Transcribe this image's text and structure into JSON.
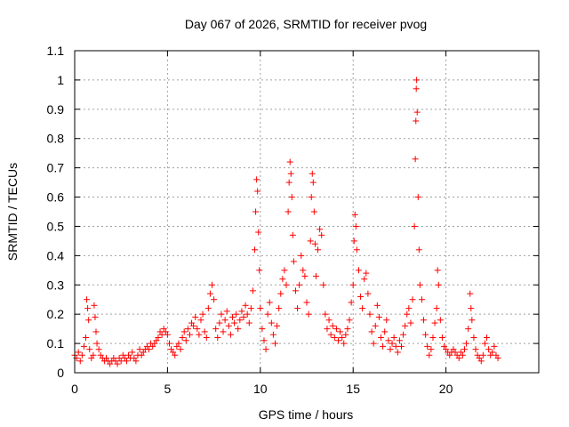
{
  "chart_data": {
    "type": "scatter",
    "title": "Day 067 of 2026, SRMTID for receiver pvog",
    "xlabel": "GPS time / hours",
    "ylabel": "SRMTID / TECUs",
    "xlim": [
      0,
      25
    ],
    "ylim": [
      0,
      1.1
    ],
    "x_ticks": [
      0,
      5,
      10,
      15,
      20
    ],
    "x_tick_labels": [
      "0",
      "5",
      "10",
      "15",
      "20"
    ],
    "y_ticks": [
      0,
      0.1,
      0.2,
      0.3,
      0.4,
      0.5,
      0.6,
      0.7,
      0.8,
      0.9,
      1,
      1.1
    ],
    "y_tick_labels": [
      "0",
      "0.1",
      "0.2",
      "0.3",
      "0.4",
      "0.5",
      "0.6",
      "0.7",
      "0.8",
      "0.9",
      "1",
      "1.1"
    ],
    "grid": true,
    "marker": "+",
    "marker_color": "#ff0000",
    "series": [
      {
        "name": "SRMTID",
        "points": [
          [
            0.0,
            0.06
          ],
          [
            0.1,
            0.05
          ],
          [
            0.2,
            0.07
          ],
          [
            0.3,
            0.04
          ],
          [
            0.4,
            0.06
          ],
          [
            0.5,
            0.09
          ],
          [
            0.6,
            0.12
          ],
          [
            0.65,
            0.25
          ],
          [
            0.7,
            0.22
          ],
          [
            0.75,
            0.18
          ],
          [
            0.8,
            0.08
          ],
          [
            0.9,
            0.05
          ],
          [
            1.0,
            0.06
          ],
          [
            1.05,
            0.23
          ],
          [
            1.1,
            0.19
          ],
          [
            1.15,
            0.14
          ],
          [
            1.2,
            0.1
          ],
          [
            1.3,
            0.08
          ],
          [
            1.4,
            0.06
          ],
          [
            1.5,
            0.05
          ],
          [
            1.6,
            0.04
          ],
          [
            1.7,
            0.05
          ],
          [
            1.8,
            0.04
          ],
          [
            1.9,
            0.03
          ],
          [
            2.0,
            0.04
          ],
          [
            2.1,
            0.05
          ],
          [
            2.2,
            0.04
          ],
          [
            2.3,
            0.03
          ],
          [
            2.4,
            0.05
          ],
          [
            2.5,
            0.04
          ],
          [
            2.6,
            0.06
          ],
          [
            2.7,
            0.05
          ],
          [
            2.8,
            0.04
          ],
          [
            2.9,
            0.06
          ],
          [
            3.0,
            0.05
          ],
          [
            3.1,
            0.07
          ],
          [
            3.2,
            0.05
          ],
          [
            3.3,
            0.04
          ],
          [
            3.4,
            0.06
          ],
          [
            3.5,
            0.08
          ],
          [
            3.6,
            0.06
          ],
          [
            3.7,
            0.07
          ],
          [
            3.8,
            0.08
          ],
          [
            3.9,
            0.09
          ],
          [
            4.0,
            0.08
          ],
          [
            4.1,
            0.1
          ],
          [
            4.2,
            0.09
          ],
          [
            4.3,
            0.1
          ],
          [
            4.4,
            0.11
          ],
          [
            4.5,
            0.12
          ],
          [
            4.6,
            0.14
          ],
          [
            4.7,
            0.13
          ],
          [
            4.8,
            0.15
          ],
          [
            4.9,
            0.14
          ],
          [
            5.0,
            0.13
          ],
          [
            5.1,
            0.1
          ],
          [
            5.2,
            0.08
          ],
          [
            5.3,
            0.07
          ],
          [
            5.4,
            0.06
          ],
          [
            5.5,
            0.09
          ],
          [
            5.6,
            0.1
          ],
          [
            5.7,
            0.08
          ],
          [
            5.8,
            0.12
          ],
          [
            5.9,
            0.14
          ],
          [
            6.0,
            0.11
          ],
          [
            6.1,
            0.15
          ],
          [
            6.2,
            0.13
          ],
          [
            6.3,
            0.17
          ],
          [
            6.4,
            0.16
          ],
          [
            6.5,
            0.19
          ],
          [
            6.6,
            0.15
          ],
          [
            6.7,
            0.13
          ],
          [
            6.8,
            0.18
          ],
          [
            6.9,
            0.2
          ],
          [
            7.0,
            0.14
          ],
          [
            7.1,
            0.12
          ],
          [
            7.2,
            0.22
          ],
          [
            7.3,
            0.27
          ],
          [
            7.4,
            0.3
          ],
          [
            7.5,
            0.25
          ],
          [
            7.6,
            0.15
          ],
          [
            7.7,
            0.12
          ],
          [
            7.8,
            0.17
          ],
          [
            7.9,
            0.2
          ],
          [
            8.0,
            0.14
          ],
          [
            8.1,
            0.18
          ],
          [
            8.2,
            0.21
          ],
          [
            8.3,
            0.16
          ],
          [
            8.4,
            0.13
          ],
          [
            8.5,
            0.19
          ],
          [
            8.6,
            0.17
          ],
          [
            8.7,
            0.2
          ],
          [
            8.8,
            0.15
          ],
          [
            8.9,
            0.18
          ],
          [
            9.0,
            0.21
          ],
          [
            9.1,
            0.19
          ],
          [
            9.2,
            0.23
          ],
          [
            9.3,
            0.2
          ],
          [
            9.4,
            0.17
          ],
          [
            9.5,
            0.22
          ],
          [
            9.6,
            0.28
          ],
          [
            9.7,
            0.42
          ],
          [
            9.75,
            0.55
          ],
          [
            9.8,
            0.66
          ],
          [
            9.85,
            0.62
          ],
          [
            9.9,
            0.48
          ],
          [
            9.95,
            0.35
          ],
          [
            10.0,
            0.22
          ],
          [
            10.1,
            0.15
          ],
          [
            10.2,
            0.11
          ],
          [
            10.3,
            0.08
          ],
          [
            10.4,
            0.2
          ],
          [
            10.5,
            0.24
          ],
          [
            10.6,
            0.17
          ],
          [
            10.7,
            0.13
          ],
          [
            10.8,
            0.1
          ],
          [
            10.9,
            0.16
          ],
          [
            11.0,
            0.22
          ],
          [
            11.1,
            0.27
          ],
          [
            11.2,
            0.32
          ],
          [
            11.3,
            0.35
          ],
          [
            11.4,
            0.3
          ],
          [
            11.5,
            0.55
          ],
          [
            11.55,
            0.65
          ],
          [
            11.6,
            0.72
          ],
          [
            11.65,
            0.68
          ],
          [
            11.7,
            0.6
          ],
          [
            11.75,
            0.47
          ],
          [
            11.8,
            0.38
          ],
          [
            11.9,
            0.28
          ],
          [
            12.0,
            0.22
          ],
          [
            12.1,
            0.3
          ],
          [
            12.2,
            0.4
          ],
          [
            12.3,
            0.35
          ],
          [
            12.4,
            0.33
          ],
          [
            12.5,
            0.24
          ],
          [
            12.6,
            0.2
          ],
          [
            12.7,
            0.45
          ],
          [
            12.75,
            0.6
          ],
          [
            12.8,
            0.68
          ],
          [
            12.85,
            0.65
          ],
          [
            12.9,
            0.55
          ],
          [
            12.95,
            0.44
          ],
          [
            13.0,
            0.33
          ],
          [
            13.1,
            0.42
          ],
          [
            13.2,
            0.49
          ],
          [
            13.3,
            0.47
          ],
          [
            13.4,
            0.3
          ],
          [
            13.5,
            0.2
          ],
          [
            13.6,
            0.15
          ],
          [
            13.7,
            0.18
          ],
          [
            13.8,
            0.13
          ],
          [
            13.9,
            0.16
          ],
          [
            14.0,
            0.12
          ],
          [
            14.1,
            0.15
          ],
          [
            14.2,
            0.11
          ],
          [
            14.3,
            0.14
          ],
          [
            14.4,
            0.12
          ],
          [
            14.5,
            0.1
          ],
          [
            14.6,
            0.13
          ],
          [
            14.7,
            0.15
          ],
          [
            14.8,
            0.18
          ],
          [
            14.9,
            0.24
          ],
          [
            15.0,
            0.3
          ],
          [
            15.05,
            0.45
          ],
          [
            15.1,
            0.54
          ],
          [
            15.15,
            0.5
          ],
          [
            15.2,
            0.42
          ],
          [
            15.3,
            0.35
          ],
          [
            15.4,
            0.26
          ],
          [
            15.5,
            0.22
          ],
          [
            15.6,
            0.32
          ],
          [
            15.7,
            0.34
          ],
          [
            15.8,
            0.27
          ],
          [
            15.9,
            0.2
          ],
          [
            16.0,
            0.14
          ],
          [
            16.1,
            0.1
          ],
          [
            16.2,
            0.16
          ],
          [
            16.3,
            0.23
          ],
          [
            16.4,
            0.19
          ],
          [
            16.5,
            0.12
          ],
          [
            16.6,
            0.09
          ],
          [
            16.7,
            0.14
          ],
          [
            16.8,
            0.18
          ],
          [
            16.9,
            0.11
          ],
          [
            17.0,
            0.08
          ],
          [
            17.1,
            0.1
          ],
          [
            17.2,
            0.12
          ],
          [
            17.3,
            0.09
          ],
          [
            17.4,
            0.07
          ],
          [
            17.5,
            0.11
          ],
          [
            17.6,
            0.09
          ],
          [
            17.7,
            0.13
          ],
          [
            17.8,
            0.16
          ],
          [
            17.9,
            0.2
          ],
          [
            18.0,
            0.22
          ],
          [
            18.1,
            0.17
          ],
          [
            18.2,
            0.25
          ],
          [
            18.3,
            0.5
          ],
          [
            18.35,
            0.73
          ],
          [
            18.38,
            0.86
          ],
          [
            18.4,
            0.97
          ],
          [
            18.42,
            1.0
          ],
          [
            18.45,
            0.89
          ],
          [
            18.5,
            0.6
          ],
          [
            18.55,
            0.42
          ],
          [
            18.6,
            0.3
          ],
          [
            18.7,
            0.25
          ],
          [
            18.8,
            0.18
          ],
          [
            18.9,
            0.13
          ],
          [
            19.0,
            0.09
          ],
          [
            19.1,
            0.06
          ],
          [
            19.2,
            0.08
          ],
          [
            19.3,
            0.12
          ],
          [
            19.4,
            0.17
          ],
          [
            19.5,
            0.22
          ],
          [
            19.55,
            0.35
          ],
          [
            19.6,
            0.3
          ],
          [
            19.7,
            0.18
          ],
          [
            19.8,
            0.12
          ],
          [
            19.9,
            0.09
          ],
          [
            20.0,
            0.08
          ],
          [
            20.1,
            0.07
          ],
          [
            20.2,
            0.06
          ],
          [
            20.3,
            0.07
          ],
          [
            20.4,
            0.08
          ],
          [
            20.5,
            0.07
          ],
          [
            20.6,
            0.06
          ],
          [
            20.7,
            0.05
          ],
          [
            20.8,
            0.07
          ],
          [
            20.9,
            0.06
          ],
          [
            21.0,
            0.08
          ],
          [
            21.1,
            0.1
          ],
          [
            21.2,
            0.15
          ],
          [
            21.3,
            0.27
          ],
          [
            21.35,
            0.22
          ],
          [
            21.4,
            0.18
          ],
          [
            21.5,
            0.12
          ],
          [
            21.6,
            0.08
          ],
          [
            21.7,
            0.06
          ],
          [
            21.8,
            0.05
          ],
          [
            21.9,
            0.04
          ],
          [
            22.0,
            0.06
          ],
          [
            22.1,
            0.1
          ],
          [
            22.2,
            0.12
          ],
          [
            22.3,
            0.08
          ],
          [
            22.4,
            0.06
          ],
          [
            22.5,
            0.07
          ],
          [
            22.6,
            0.09
          ],
          [
            22.7,
            0.06
          ],
          [
            22.8,
            0.05
          ]
        ]
      }
    ]
  }
}
